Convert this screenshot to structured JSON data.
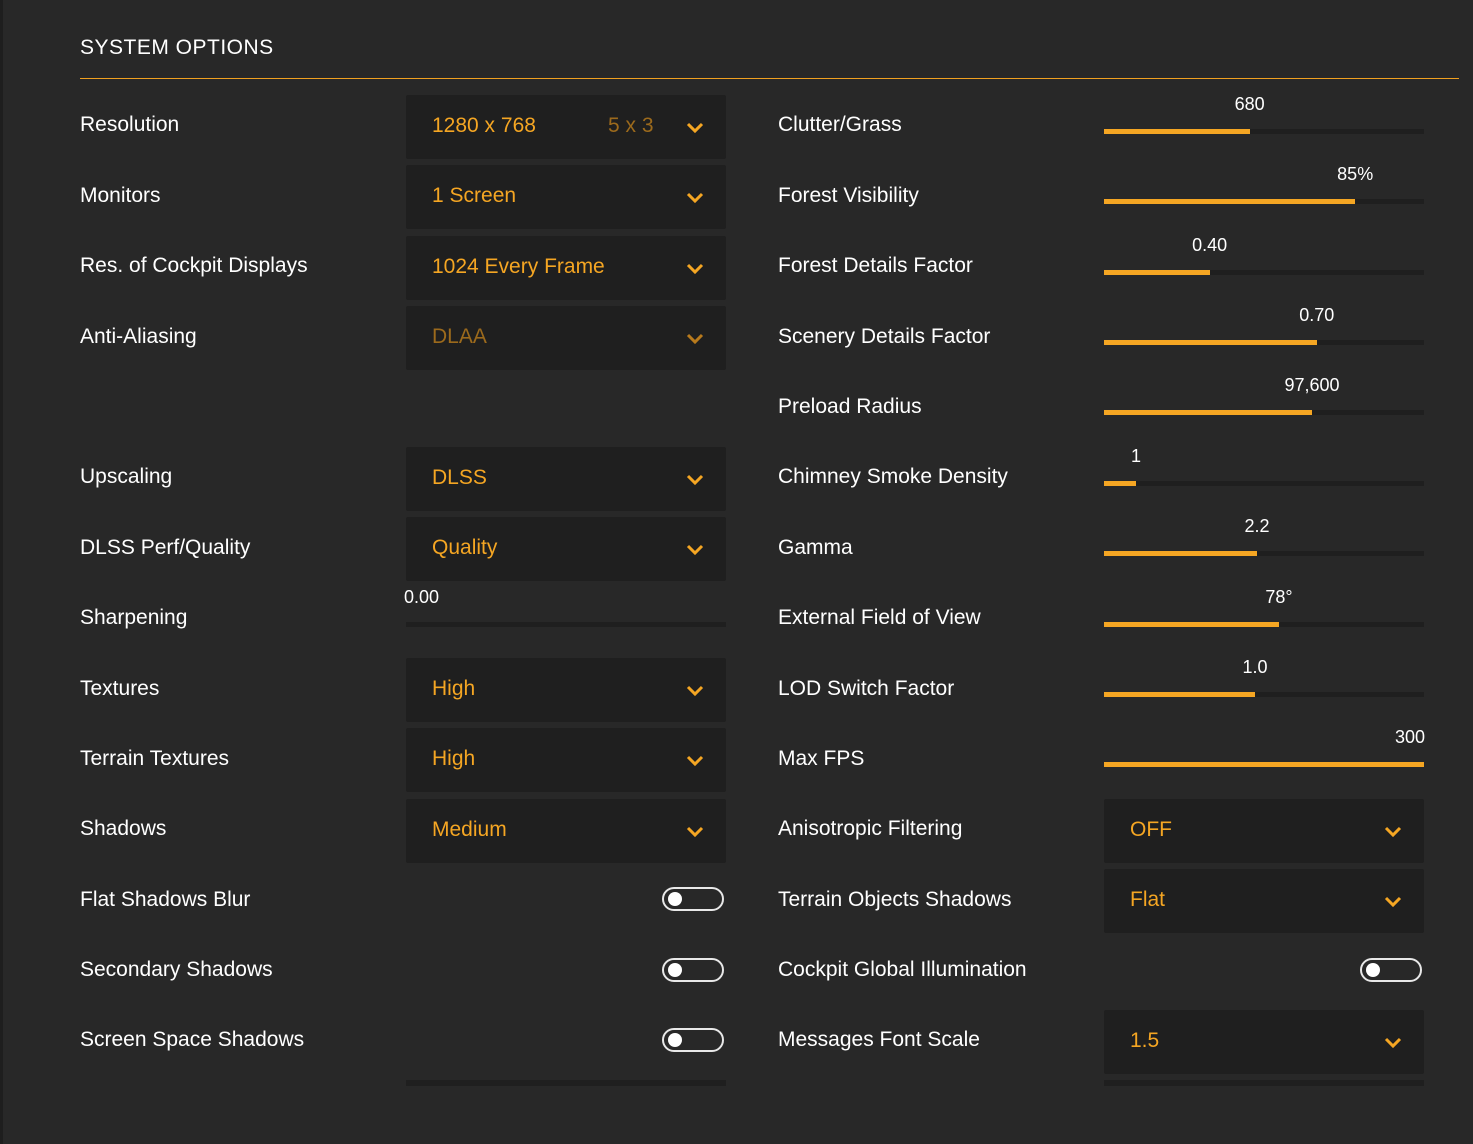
{
  "title": "SYSTEM OPTIONS",
  "colors": {
    "accent": "#f5a623",
    "background": "#282828",
    "control_bg": "#1f1f1f",
    "text": "#ffffff"
  },
  "left": {
    "resolution": {
      "label": "Resolution",
      "value": "1280 x 768",
      "aspect": "5 x 3"
    },
    "monitors": {
      "label": "Monitors",
      "value": "1 Screen"
    },
    "cockpit_displays": {
      "label": "Res. of Cockpit Displays",
      "value": "1024 Every Frame"
    },
    "anti_aliasing": {
      "label": "Anti-Aliasing",
      "value": "DLAA",
      "disabled": true
    },
    "upscaling": {
      "label": "Upscaling",
      "value": "DLSS"
    },
    "dlss_quality": {
      "label": "DLSS Perf/Quality",
      "value": "Quality"
    },
    "sharpening": {
      "label": "Sharpening",
      "value": "0.00",
      "fraction": 0.0
    },
    "textures": {
      "label": "Textures",
      "value": "High"
    },
    "terrain_textures": {
      "label": "Terrain Textures",
      "value": "High"
    },
    "shadows": {
      "label": "Shadows",
      "value": "Medium"
    },
    "flat_shadows_blur": {
      "label": "Flat Shadows Blur",
      "on": false
    },
    "secondary_shadows": {
      "label": "Secondary Shadows",
      "on": false
    },
    "screen_space_shadows": {
      "label": "Screen Space Shadows",
      "on": false
    }
  },
  "right": {
    "clutter_grass": {
      "label": "Clutter/Grass",
      "value": "680",
      "fraction": 0.455
    },
    "forest_visibility": {
      "label": "Forest Visibility",
      "value": "85%",
      "fraction": 0.785
    },
    "forest_details": {
      "label": "Forest Details Factor",
      "value": "0.40",
      "fraction": 0.33
    },
    "scenery_details": {
      "label": "Scenery Details Factor",
      "value": "0.70",
      "fraction": 0.665
    },
    "preload_radius": {
      "label": "Preload Radius",
      "value": "97,600",
      "fraction": 0.65
    },
    "chimney_smoke": {
      "label": "Chimney Smoke Density",
      "value": "1",
      "fraction": 0.1
    },
    "gamma": {
      "label": "Gamma",
      "value": "2.2",
      "fraction": 0.478
    },
    "external_fov": {
      "label": "External Field of View",
      "value": "78°",
      "fraction": 0.547
    },
    "lod_switch": {
      "label": "LOD Switch Factor",
      "value": "1.0",
      "fraction": 0.472
    },
    "max_fps": {
      "label": "Max FPS",
      "value": "300",
      "fraction": 1.0
    },
    "anisotropic": {
      "label": "Anisotropic Filtering",
      "value": "OFF"
    },
    "terrain_objects_shadows": {
      "label": "Terrain Objects Shadows",
      "value": "Flat"
    },
    "cockpit_gi": {
      "label": "Cockpit Global Illumination",
      "on": false
    },
    "messages_font_scale": {
      "label": "Messages Font Scale",
      "value": "1.5"
    }
  }
}
